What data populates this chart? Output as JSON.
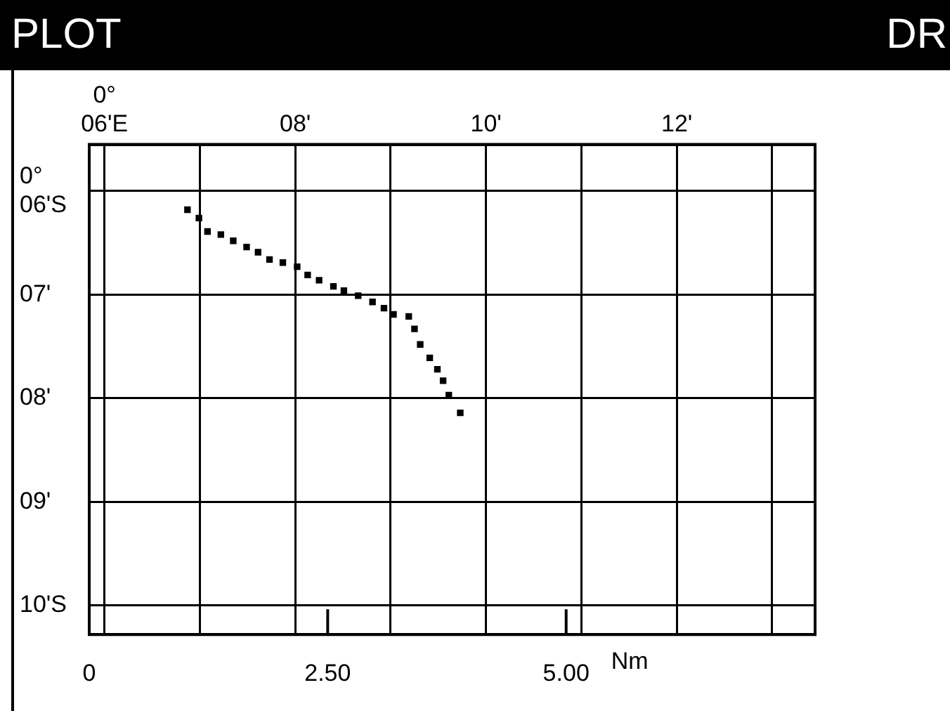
{
  "chart_data": {
    "type": "scatter",
    "title": "PLOT",
    "annotations": [
      "DR"
    ],
    "x": [
      6.87,
      6.99,
      7.08,
      7.22,
      7.35,
      7.49,
      7.61,
      7.73,
      7.87,
      8.02,
      8.13,
      8.25,
      8.4,
      8.51,
      8.66,
      8.81,
      8.93,
      9.03,
      9.19,
      9.25,
      9.31,
      9.41,
      9.49,
      9.55,
      9.61,
      9.73
    ],
    "series": [
      {
        "color": "#000000",
        "values": [
          6.18,
          6.26,
          6.39,
          6.42,
          6.48,
          6.54,
          6.59,
          6.66,
          6.69,
          6.73,
          6.81,
          6.86,
          6.92,
          6.96,
          7.01,
          7.07,
          7.13,
          7.19,
          7.21,
          7.33,
          7.48,
          7.61,
          7.72,
          7.83,
          7.97,
          8.14
        ]
      }
    ],
    "xlim": [
      5.84,
      13.45
    ],
    "xticks": [
      {
        "value": 6,
        "label": "0°\n06'E"
      },
      {
        "value": 7,
        "label": null
      },
      {
        "value": 8,
        "label": "08'"
      },
      {
        "value": 9,
        "label": null
      },
      {
        "value": 10,
        "label": "10'"
      },
      {
        "value": 11,
        "label": null
      },
      {
        "value": 12,
        "label": "12'"
      },
      {
        "value": 13,
        "label": null
      }
    ],
    "ylim": [
      10.28,
      5.55
    ],
    "yticks": [
      {
        "value": 6,
        "label": "0°\n06'S"
      },
      {
        "value": 7,
        "label": "07'"
      },
      {
        "value": 8,
        "label": "08'"
      },
      {
        "value": 9,
        "label": "09'"
      },
      {
        "value": 10,
        "label": "10'S"
      }
    ],
    "x2lim": [
      0,
      7.61
    ],
    "x2ticks": [
      0,
      {
        "value": 2.5,
        "label": "2.50"
      },
      {
        "value": 5,
        "label": "5.00"
      }
    ],
    "x2label": "Nm",
    "grid": true,
    "legend": false,
    "marker": "square"
  }
}
